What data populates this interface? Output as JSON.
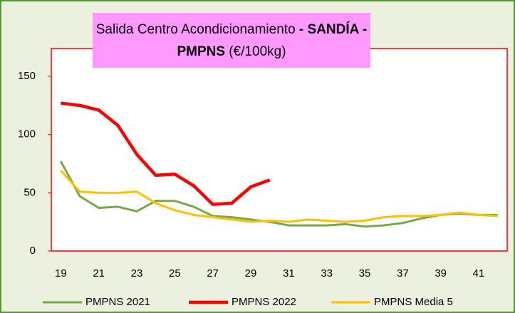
{
  "chart_data": {
    "type": "line",
    "title": [
      "Salida Centro Acondicionamiento ",
      "- SANDÍA -",
      "PMPNS",
      " (€/100kg)"
    ],
    "categories": [
      19,
      null,
      21,
      null,
      23,
      null,
      25,
      null,
      27,
      null,
      29,
      null,
      31,
      null,
      33,
      null,
      35,
      null,
      37,
      null,
      39,
      null,
      41,
      null
    ],
    "series": [
      {
        "name": "PMPNS 2021",
        "color": "#77a84a",
        "values": [
          77,
          47,
          37,
          38,
          34,
          43,
          43,
          38,
          30,
          29,
          27,
          25,
          22,
          22,
          22,
          23,
          21,
          22,
          24,
          28,
          31,
          32,
          31,
          31
        ]
      },
      {
        "name": "PMPNS 2022",
        "color": "#ff0000",
        "values": [
          127,
          125,
          121,
          108,
          83,
          65,
          66,
          56,
          40,
          41,
          55,
          61,
          null,
          null,
          null,
          null,
          null,
          null,
          null,
          null,
          null,
          null,
          null,
          null
        ]
      },
      {
        "name": "PMPNS Media 5",
        "color": "#ffc000",
        "values": [
          69,
          51,
          50,
          50,
          51,
          41,
          35,
          31,
          29,
          27,
          25,
          26,
          25,
          27,
          26,
          25,
          26,
          29,
          30,
          30,
          31,
          33,
          31,
          30
        ]
      }
    ],
    "ylim": [
      0,
      150
    ],
    "yticks": [
      0,
      50,
      100,
      150
    ],
    "grid": false,
    "legend": "bottom"
  }
}
